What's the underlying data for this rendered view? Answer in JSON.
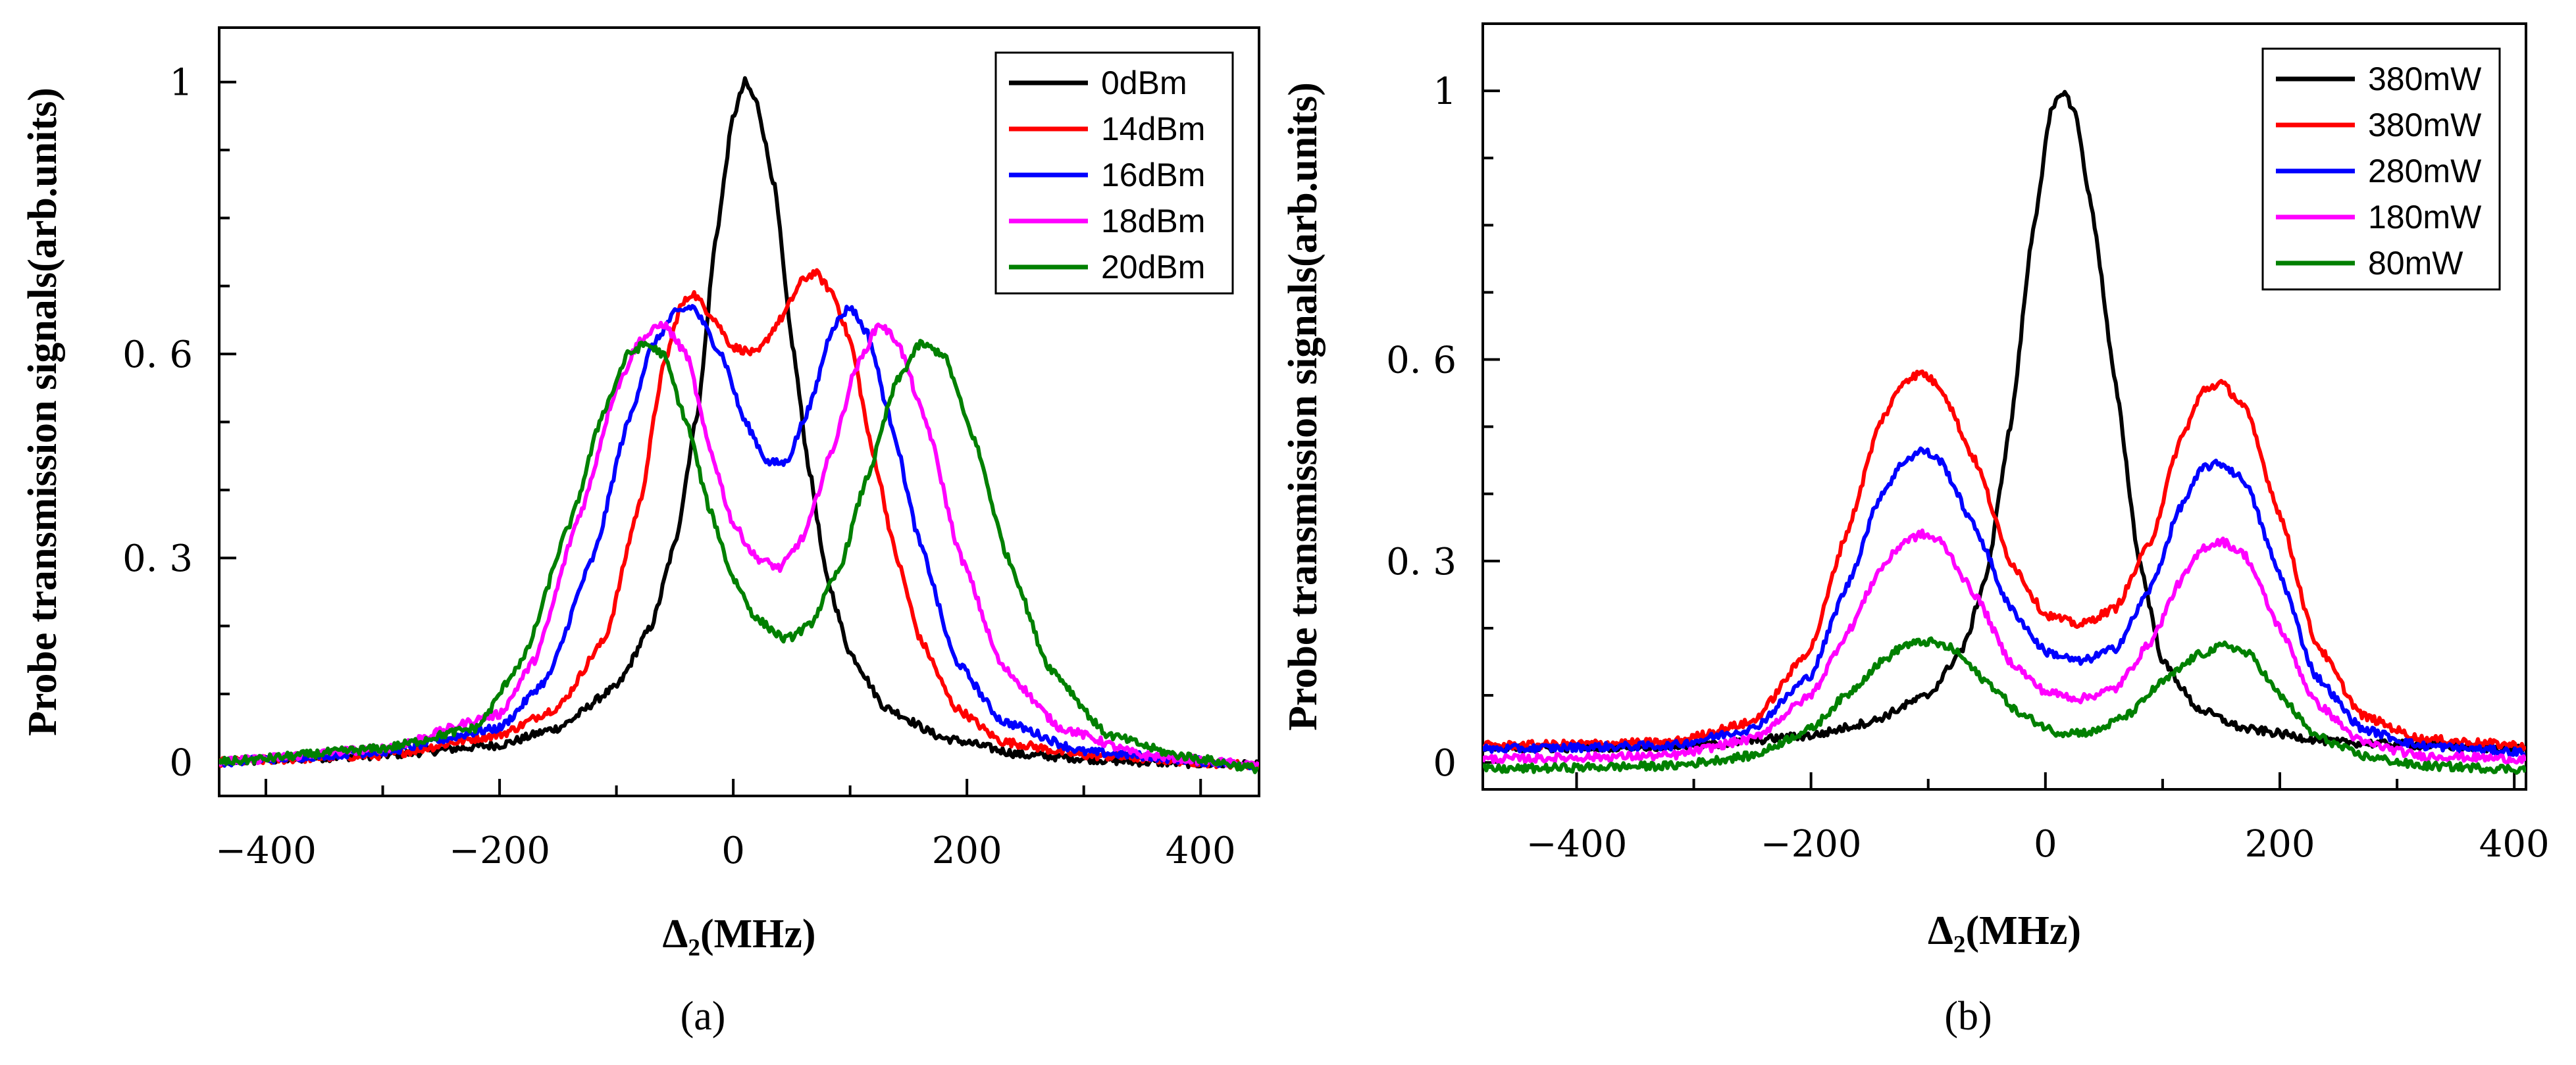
{
  "chart_data": [
    {
      "type": "line",
      "panel_label": "(a)",
      "xlabel": "Δ₂(MHz)",
      "ylabel": "Probe transmission signals(arb.units)",
      "xlim": [
        -440,
        450
      ],
      "ylim": [
        -0.05,
        1.08
      ],
      "xticks": [
        -400,
        -200,
        0,
        200,
        400
      ],
      "xtick_labels": [
        "−400",
        "−200",
        "0",
        "200",
        "400"
      ],
      "yticks": [
        0,
        0.3,
        0.6,
        1
      ],
      "ytick_labels": [
        "0",
        "0. 3",
        "0. 6",
        "1"
      ],
      "legend_position": "top-right",
      "series": [
        {
          "name": "0dBm",
          "color": "#000000",
          "points": [
            [
              -440,
              0.0
            ],
            [
              -300,
              0.01
            ],
            [
              -200,
              0.025
            ],
            [
              -150,
              0.05
            ],
            [
              -100,
              0.11
            ],
            [
              -70,
              0.2
            ],
            [
              -50,
              0.32
            ],
            [
              -30,
              0.52
            ],
            [
              -15,
              0.77
            ],
            [
              0,
              0.95
            ],
            [
              10,
              1.0
            ],
            [
              20,
              0.97
            ],
            [
              35,
              0.85
            ],
            [
              50,
              0.62
            ],
            [
              65,
              0.43
            ],
            [
              80,
              0.27
            ],
            [
              100,
              0.16
            ],
            [
              130,
              0.08
            ],
            [
              180,
              0.035
            ],
            [
              250,
              0.01
            ],
            [
              350,
              0.0
            ],
            [
              450,
              -0.005
            ]
          ]
        },
        {
          "name": "14dBm",
          "color": "#ff0000",
          "points": [
            [
              -440,
              0.0
            ],
            [
              -300,
              0.01
            ],
            [
              -200,
              0.04
            ],
            [
              -150,
              0.08
            ],
            [
              -110,
              0.18
            ],
            [
              -80,
              0.38
            ],
            [
              -60,
              0.58
            ],
            [
              -45,
              0.67
            ],
            [
              -35,
              0.69
            ],
            [
              -20,
              0.66
            ],
            [
              0,
              0.61
            ],
            [
              20,
              0.6
            ],
            [
              40,
              0.65
            ],
            [
              60,
              0.71
            ],
            [
              70,
              0.72
            ],
            [
              85,
              0.69
            ],
            [
              100,
              0.62
            ],
            [
              120,
              0.45
            ],
            [
              140,
              0.3
            ],
            [
              160,
              0.18
            ],
            [
              190,
              0.08
            ],
            [
              230,
              0.03
            ],
            [
              300,
              0.01
            ],
            [
              450,
              -0.005
            ]
          ]
        },
        {
          "name": "16dBm",
          "color": "#0000ff",
          "points": [
            [
              -440,
              0.0
            ],
            [
              -300,
              0.015
            ],
            [
              -200,
              0.05
            ],
            [
              -160,
              0.12
            ],
            [
              -120,
              0.3
            ],
            [
              -90,
              0.5
            ],
            [
              -70,
              0.61
            ],
            [
              -50,
              0.66
            ],
            [
              -35,
              0.67
            ],
            [
              -10,
              0.6
            ],
            [
              10,
              0.5
            ],
            [
              30,
              0.44
            ],
            [
              45,
              0.44
            ],
            [
              65,
              0.52
            ],
            [
              85,
              0.64
            ],
            [
              100,
              0.67
            ],
            [
              115,
              0.63
            ],
            [
              135,
              0.5
            ],
            [
              160,
              0.32
            ],
            [
              190,
              0.15
            ],
            [
              230,
              0.06
            ],
            [
              300,
              0.015
            ],
            [
              450,
              -0.005
            ]
          ]
        },
        {
          "name": "18dBm",
          "color": "#ff00ff",
          "points": [
            [
              -440,
              0.0
            ],
            [
              -300,
              0.02
            ],
            [
              -200,
              0.07
            ],
            [
              -170,
              0.15
            ],
            [
              -130,
              0.37
            ],
            [
              -100,
              0.55
            ],
            [
              -80,
              0.62
            ],
            [
              -60,
              0.645
            ],
            [
              -40,
              0.6
            ],
            [
              -20,
              0.46
            ],
            [
              0,
              0.35
            ],
            [
              20,
              0.3
            ],
            [
              40,
              0.285
            ],
            [
              60,
              0.33
            ],
            [
              85,
              0.46
            ],
            [
              105,
              0.58
            ],
            [
              125,
              0.645
            ],
            [
              140,
              0.62
            ],
            [
              165,
              0.5
            ],
            [
              195,
              0.3
            ],
            [
              230,
              0.14
            ],
            [
              280,
              0.05
            ],
            [
              350,
              0.01
            ],
            [
              450,
              -0.005
            ]
          ]
        },
        {
          "name": "20dBm",
          "color": "#008000",
          "points": [
            [
              -440,
              0.0
            ],
            [
              -300,
              0.02
            ],
            [
              -220,
              0.05
            ],
            [
              -180,
              0.15
            ],
            [
              -140,
              0.35
            ],
            [
              -110,
              0.52
            ],
            [
              -90,
              0.6
            ],
            [
              -75,
              0.615
            ],
            [
              -60,
              0.6
            ],
            [
              -40,
              0.5
            ],
            [
              -20,
              0.37
            ],
            [
              0,
              0.27
            ],
            [
              20,
              0.21
            ],
            [
              45,
              0.18
            ],
            [
              65,
              0.2
            ],
            [
              90,
              0.28
            ],
            [
              115,
              0.42
            ],
            [
              140,
              0.56
            ],
            [
              160,
              0.615
            ],
            [
              180,
              0.6
            ],
            [
              205,
              0.48
            ],
            [
              235,
              0.3
            ],
            [
              270,
              0.14
            ],
            [
              320,
              0.04
            ],
            [
              380,
              0.01
            ],
            [
              450,
              -0.01
            ]
          ]
        }
      ]
    },
    {
      "type": "line",
      "panel_label": "(b)",
      "xlabel": "Δ₂(MHz)",
      "ylabel": "Probe transmission signals(arb.units)",
      "xlim": [
        -480,
        410
      ],
      "ylim": [
        -0.04,
        1.1
      ],
      "xticks": [
        -400,
        -200,
        0,
        200,
        400
      ],
      "xtick_labels": [
        "−400",
        "−200",
        "0",
        "200",
        "400"
      ],
      "yticks": [
        0,
        0.3,
        0.6,
        1
      ],
      "ytick_labels": [
        "0",
        "0. 3",
        "0. 6",
        "1"
      ],
      "legend_position": "top-right",
      "series": [
        {
          "name": "380mW",
          "color": "#000000",
          "points": [
            [
              -480,
              0.02
            ],
            [
              -300,
              0.025
            ],
            [
              -200,
              0.04
            ],
            [
              -150,
              0.06
            ],
            [
              -100,
              0.1
            ],
            [
              -70,
              0.17
            ],
            [
              -50,
              0.28
            ],
            [
              -30,
              0.5
            ],
            [
              -10,
              0.8
            ],
            [
              5,
              0.97
            ],
            [
              15,
              1.0
            ],
            [
              25,
              0.97
            ],
            [
              40,
              0.82
            ],
            [
              60,
              0.56
            ],
            [
              80,
              0.3
            ],
            [
              100,
              0.15
            ],
            [
              130,
              0.08
            ],
            [
              170,
              0.05
            ],
            [
              250,
              0.03
            ],
            [
              410,
              0.02
            ]
          ]
        },
        {
          "name": "380mW",
          "color": "#ff0000",
          "points": [
            [
              -480,
              0.025
            ],
            [
              -320,
              0.03
            ],
            [
              -250,
              0.06
            ],
            [
              -200,
              0.17
            ],
            [
              -170,
              0.34
            ],
            [
              -140,
              0.51
            ],
            [
              -120,
              0.57
            ],
            [
              -105,
              0.58
            ],
            [
              -90,
              0.56
            ],
            [
              -60,
              0.45
            ],
            [
              -30,
              0.3
            ],
            [
              0,
              0.22
            ],
            [
              30,
              0.205
            ],
            [
              60,
              0.23
            ],
            [
              90,
              0.33
            ],
            [
              115,
              0.48
            ],
            [
              135,
              0.555
            ],
            [
              150,
              0.565
            ],
            [
              170,
              0.53
            ],
            [
              200,
              0.37
            ],
            [
              230,
              0.18
            ],
            [
              270,
              0.07
            ],
            [
              320,
              0.035
            ],
            [
              410,
              0.025
            ]
          ]
        },
        {
          "name": "280mW",
          "color": "#0000ff",
          "points": [
            [
              -480,
              0.02
            ],
            [
              -320,
              0.025
            ],
            [
              -250,
              0.05
            ],
            [
              -200,
              0.13
            ],
            [
              -170,
              0.26
            ],
            [
              -140,
              0.4
            ],
            [
              -120,
              0.45
            ],
            [
              -105,
              0.465
            ],
            [
              -90,
              0.45
            ],
            [
              -60,
              0.35
            ],
            [
              -30,
              0.23
            ],
            [
              0,
              0.165
            ],
            [
              30,
              0.15
            ],
            [
              60,
              0.17
            ],
            [
              90,
              0.26
            ],
            [
              115,
              0.38
            ],
            [
              135,
              0.44
            ],
            [
              150,
              0.445
            ],
            [
              170,
              0.42
            ],
            [
              200,
              0.28
            ],
            [
              230,
              0.13
            ],
            [
              270,
              0.05
            ],
            [
              320,
              0.025
            ],
            [
              410,
              0.015
            ]
          ]
        },
        {
          "name": "180mW",
          "color": "#ff00ff",
          "points": [
            [
              -480,
              0.005
            ],
            [
              -320,
              0.01
            ],
            [
              -250,
              0.035
            ],
            [
              -200,
              0.1
            ],
            [
              -170,
              0.19
            ],
            [
              -140,
              0.29
            ],
            [
              -120,
              0.33
            ],
            [
              -105,
              0.34
            ],
            [
              -90,
              0.33
            ],
            [
              -60,
              0.25
            ],
            [
              -30,
              0.15
            ],
            [
              0,
              0.105
            ],
            [
              30,
              0.095
            ],
            [
              60,
              0.11
            ],
            [
              90,
              0.18
            ],
            [
              115,
              0.27
            ],
            [
              135,
              0.32
            ],
            [
              150,
              0.33
            ],
            [
              170,
              0.31
            ],
            [
              200,
              0.2
            ],
            [
              230,
              0.09
            ],
            [
              270,
              0.03
            ],
            [
              320,
              0.01
            ],
            [
              410,
              0.005
            ]
          ]
        },
        {
          "name": "80mW",
          "color": "#008000",
          "points": [
            [
              -480,
              -0.01
            ],
            [
              -320,
              -0.005
            ],
            [
              -250,
              0.01
            ],
            [
              -200,
              0.05
            ],
            [
              -170,
              0.1
            ],
            [
              -140,
              0.15
            ],
            [
              -120,
              0.175
            ],
            [
              -100,
              0.18
            ],
            [
              -80,
              0.17
            ],
            [
              -50,
              0.12
            ],
            [
              -20,
              0.07
            ],
            [
              10,
              0.045
            ],
            [
              40,
              0.045
            ],
            [
              70,
              0.07
            ],
            [
              100,
              0.12
            ],
            [
              130,
              0.16
            ],
            [
              155,
              0.175
            ],
            [
              175,
              0.16
            ],
            [
              200,
              0.1
            ],
            [
              230,
              0.04
            ],
            [
              270,
              0.01
            ],
            [
              320,
              -0.005
            ],
            [
              410,
              -0.01
            ]
          ]
        }
      ]
    }
  ]
}
